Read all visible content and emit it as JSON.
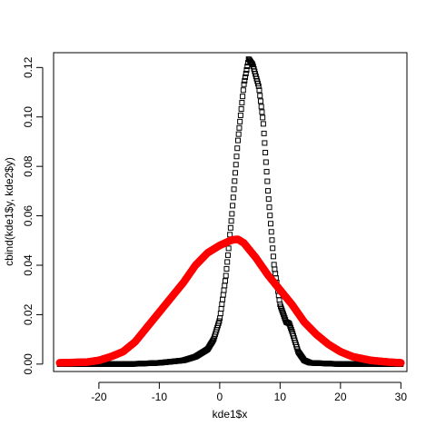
{
  "chart_data": {
    "type": "scatter",
    "title": "",
    "xlabel": "kde1$x",
    "ylabel": "cbind(kde1$y, kde2$y)",
    "xlim": [
      -27.5,
      31
    ],
    "ylim": [
      -0.003,
      0.126
    ],
    "x_ticks": [
      -20,
      -10,
      0,
      10,
      20,
      30
    ],
    "y_ticks": [
      0.0,
      0.02,
      0.04,
      0.06,
      0.08,
      0.1,
      0.12
    ],
    "x_tick_labels": [
      "-20",
      "-10",
      "0",
      "10",
      "20",
      "30"
    ],
    "y_tick_labels": [
      "0.00",
      "0.02",
      "0.04",
      "0.06",
      "0.08",
      "0.10",
      "0.12"
    ],
    "grid": false,
    "x_range_points": [
      -26.5,
      30
    ],
    "series": [
      {
        "marker": "square",
        "color": "#000000",
        "points": [
          [
            -26.5,
            0.0
          ],
          [
            -20,
            0.0
          ],
          [
            -15,
            0.0
          ],
          [
            -10,
            0.0005
          ],
          [
            -8,
            0.001
          ],
          [
            -6,
            0.0015
          ],
          [
            -4,
            0.003
          ],
          [
            -2,
            0.006
          ],
          [
            -1,
            0.01
          ],
          [
            0,
            0.018
          ],
          [
            1,
            0.035
          ],
          [
            2,
            0.06
          ],
          [
            3,
            0.09
          ],
          [
            4,
            0.113
          ],
          [
            4.8,
            0.1235
          ],
          [
            5.5,
            0.121
          ],
          [
            6.5,
            0.112
          ],
          [
            7.2,
            0.098
          ],
          [
            8,
            0.07
          ],
          [
            9,
            0.04
          ],
          [
            10,
            0.024
          ],
          [
            11,
            0.017
          ],
          [
            11.5,
            0.0165
          ],
          [
            12,
            0.013
          ],
          [
            13,
            0.005
          ],
          [
            14,
            0.0015
          ],
          [
            15,
            0.0005
          ],
          [
            20,
            0.0
          ],
          [
            25,
            0.0
          ],
          [
            30,
            0.0
          ]
        ]
      },
      {
        "marker": "circle",
        "color": "#ff0000",
        "points": [
          [
            -26.5,
            0.0005
          ],
          [
            -22,
            0.0008
          ],
          [
            -20,
            0.0015
          ],
          [
            -18,
            0.003
          ],
          [
            -16,
            0.005
          ],
          [
            -14,
            0.009
          ],
          [
            -12,
            0.015
          ],
          [
            -10,
            0.021
          ],
          [
            -8,
            0.027
          ],
          [
            -6,
            0.033
          ],
          [
            -4,
            0.04
          ],
          [
            -2,
            0.045
          ],
          [
            0,
            0.048
          ],
          [
            2,
            0.0502
          ],
          [
            3,
            0.0505
          ],
          [
            4,
            0.049
          ],
          [
            6,
            0.043
          ],
          [
            8,
            0.036
          ],
          [
            10,
            0.03
          ],
          [
            12,
            0.024
          ],
          [
            14,
            0.017
          ],
          [
            16,
            0.012
          ],
          [
            18,
            0.008
          ],
          [
            20,
            0.005
          ],
          [
            22,
            0.003
          ],
          [
            25,
            0.0015
          ],
          [
            28,
            0.0008
          ],
          [
            30,
            0.0005
          ]
        ]
      }
    ]
  }
}
